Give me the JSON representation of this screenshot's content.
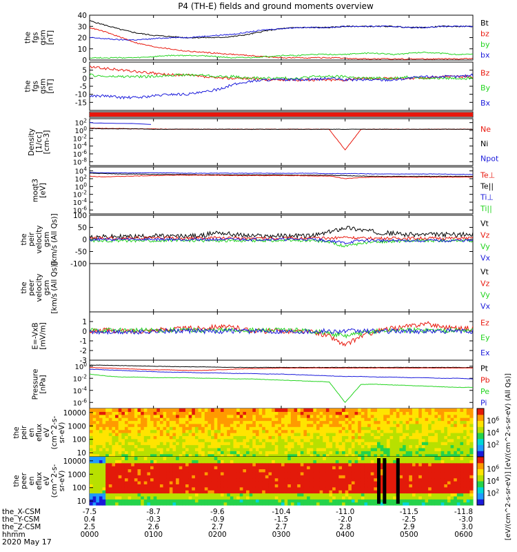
{
  "title": "P4 (TH-E) fields and ground moments overview",
  "date_label": "2020 May 17",
  "colors": {
    "black": "#000000",
    "red": "#e8170c",
    "green": "#23d41f",
    "blue": "#1a1adb"
  },
  "chart_data": [
    {
      "id": "p1",
      "type": "line",
      "ylabel": [
        "the",
        "fgs",
        "gsm",
        "[nT]"
      ],
      "ylim": [
        0,
        40
      ],
      "ticks": [
        0,
        10,
        20,
        30,
        40
      ],
      "scale": "linear",
      "legend": [
        {
          "name": "Bt",
          "color": "black"
        },
        {
          "name": "bz",
          "color": "red"
        },
        {
          "name": "by",
          "color": "green"
        },
        {
          "name": "bx",
          "color": "blue"
        }
      ],
      "series": [
        {
          "name": "Bt",
          "color": "black",
          "values": [
            35,
            31,
            27,
            24,
            22,
            21,
            20,
            20,
            20,
            21,
            23,
            26,
            28,
            29,
            29,
            29,
            30,
            30,
            30,
            30,
            29,
            29,
            30,
            30,
            30
          ]
        },
        {
          "name": "bz",
          "color": "red",
          "values": [
            29,
            25,
            20,
            15,
            12,
            10,
            8,
            7,
            6,
            5,
            4,
            3,
            2,
            2,
            2,
            2,
            1.5,
            1,
            1,
            1,
            1,
            1,
            1,
            1,
            1.5
          ]
        },
        {
          "name": "by",
          "color": "green",
          "values": [
            2,
            2,
            2,
            2,
            3,
            4,
            4,
            4,
            3,
            2,
            2,
            3,
            4,
            4,
            5,
            5,
            5,
            6,
            6,
            5,
            6,
            7,
            6,
            5,
            5
          ]
        },
        {
          "name": "bx",
          "color": "blue",
          "values": [
            20,
            19,
            18,
            18,
            19,
            20,
            20,
            21,
            22,
            23,
            25,
            27,
            28,
            29,
            29,
            29,
            30,
            30,
            30,
            30,
            29,
            29,
            30,
            30,
            30
          ]
        }
      ]
    },
    {
      "id": "p2",
      "type": "line",
      "ylabel": [
        "the",
        "fgs",
        "gsm",
        "[nT]"
      ],
      "ylim": [
        -20,
        10
      ],
      "ticks": [
        -15,
        -10,
        -5,
        0,
        5
      ],
      "scale": "linear",
      "legend": [
        {
          "name": "Bz",
          "color": "red"
        },
        {
          "name": "By",
          "color": "green"
        },
        {
          "name": "Bx",
          "color": "blue"
        }
      ],
      "series": [
        {
          "name": "Bz",
          "color": "red",
          "values": [
            7,
            6,
            5,
            4,
            3,
            2,
            2,
            1,
            0,
            0,
            0,
            -1,
            -1,
            -1,
            -1,
            -1,
            -1,
            0,
            0,
            0,
            0,
            0,
            1,
            1,
            1
          ]
        },
        {
          "name": "By",
          "color": "green",
          "values": [
            2,
            1,
            1,
            1,
            1,
            2,
            2,
            2,
            1,
            1,
            0,
            0,
            0,
            0,
            1,
            1,
            1,
            0,
            0,
            0,
            1,
            0,
            0,
            0,
            0
          ]
        },
        {
          "name": "Bx",
          "color": "blue",
          "values": [
            -11,
            -11,
            -12,
            -12,
            -11,
            -10,
            -10,
            -9,
            -7,
            -4,
            -2,
            -1,
            -1,
            -1,
            -1,
            0,
            -1,
            -1,
            -1,
            -1,
            0,
            1,
            1,
            1,
            2
          ]
        }
      ]
    },
    {
      "id": "p3",
      "type": "bar"
    },
    {
      "id": "p4",
      "type": "line",
      "ylabel": [
        "Density",
        "[1/cc]",
        "[cm-3]"
      ],
      "ylim": [
        -9,
        3
      ],
      "ticks": [
        -8,
        -6,
        -4,
        -2,
        0,
        2
      ],
      "scale": "log",
      "legend": [
        {
          "name": "Ne",
          "color": "red"
        },
        {
          "name": "Ni",
          "color": "black"
        },
        {
          "name": "Npot",
          "color": "blue"
        }
      ],
      "series": [
        {
          "name": "Ne",
          "color": "red",
          "values": [
            0.6,
            0.5,
            0.5,
            0.4,
            0.4,
            0.3,
            0.3,
            0.3,
            0.3,
            0.3,
            0.3,
            0.3,
            0.3,
            0.3,
            0.3,
            0.3,
            -5,
            0.3,
            0.3,
            0.3,
            0.3,
            0.3,
            0.3,
            0.3,
            0.3
          ]
        },
        {
          "name": "Ni",
          "color": "black",
          "values": [
            0.5,
            0.4,
            0.4,
            0.4,
            0.3,
            0.3,
            0.3,
            0.3,
            0.3,
            0.3,
            0.3,
            0.3,
            0.3,
            0.3,
            0.3,
            0.3,
            0.3,
            0.3,
            0.3,
            0.3,
            0.3,
            0.3,
            0.3,
            0.3,
            0.3
          ]
        },
        {
          "name": "Npot",
          "color": "blue",
          "values": [
            2,
            1.8,
            1.8,
            1.5
          ]
        }
      ]
    },
    {
      "id": "p5",
      "type": "line",
      "ylabel": [
        "moqt3",
        "[eV]"
      ],
      "ylim": [
        -7,
        5
      ],
      "ticks": [
        -6,
        -4,
        -2,
        0,
        2,
        4
      ],
      "scale": "log",
      "legend": [
        {
          "name": "Te⊥",
          "color": "red"
        },
        {
          "name": "Te||",
          "color": "black"
        },
        {
          "name": "Ti⊥",
          "color": "blue"
        },
        {
          "name": "Ti||",
          "color": "green"
        }
      ],
      "series": [
        {
          "name": "Ti⊥",
          "color": "blue",
          "values": [
            3.6,
            3.5,
            3.5,
            3.5,
            3.5,
            3.5,
            3.4,
            3.4,
            3.4,
            3.4,
            3.4,
            3.4,
            3.4,
            3.4,
            3.4,
            3.3,
            3.3,
            3.3,
            3.2,
            3.2,
            3.2,
            3.2,
            3.2,
            3.1,
            3.1
          ]
        },
        {
          "name": "Te||",
          "color": "black",
          "values": [
            3.4,
            3.3,
            3.2,
            3.2,
            3.1,
            3.1,
            3.1,
            3.0,
            3.0,
            3.0,
            3.0,
            3.0,
            3.0,
            2.9,
            2.9,
            2.9,
            2.8,
            2.7,
            2.6,
            2.6,
            2.6,
            2.6,
            2.6,
            2.6,
            2.6
          ]
        },
        {
          "name": "Te⊥",
          "color": "red",
          "values": [
            2.6,
            2.5,
            2.6,
            2.7,
            2.8,
            2.9,
            2.9,
            2.9,
            2.9,
            2.8,
            2.8,
            2.8,
            2.8,
            2.8,
            2.7,
            2.7,
            2.0,
            2.3,
            2.4,
            2.4,
            2.4,
            2.4,
            2.4,
            2.4,
            2.4
          ]
        }
      ]
    },
    {
      "id": "p6",
      "type": "line",
      "ylabel": [
        "the",
        "peir",
        "velocity",
        "gsm",
        "[km/s (All Qs)]"
      ],
      "ylim": [
        -100,
        100
      ],
      "ticks": [
        -100,
        -50,
        0,
        50,
        100
      ],
      "scale": "linear",
      "legend": [
        {
          "name": "Vt",
          "color": "black"
        },
        {
          "name": "Vz",
          "color": "red"
        },
        {
          "name": "Vy",
          "color": "green"
        },
        {
          "name": "Vx",
          "color": "blue"
        }
      ],
      "series": [
        {
          "name": "Vt",
          "color": "black",
          "values": [
            10,
            10,
            12,
            12,
            15,
            12,
            14,
            15,
            30,
            20,
            15,
            14,
            15,
            15,
            15,
            30,
            50,
            40,
            30,
            25,
            20,
            20,
            20,
            20,
            20
          ]
        },
        {
          "name": "Vz",
          "color": "red",
          "values": [
            5,
            5,
            5,
            6,
            6,
            5,
            5,
            5,
            6,
            5,
            5,
            5,
            5,
            5,
            5,
            5,
            10,
            5,
            5,
            5,
            5,
            5,
            5,
            5,
            5
          ]
        },
        {
          "name": "Vy",
          "color": "green",
          "values": [
            -5,
            -5,
            -5,
            -5,
            -5,
            -5,
            -5,
            -5,
            -5,
            -5,
            -5,
            -5,
            -5,
            -5,
            -5,
            -10,
            -30,
            -15,
            -10,
            -8,
            -5,
            -5,
            -5,
            -5,
            -5
          ]
        },
        {
          "name": "Vx",
          "color": "blue",
          "values": [
            0,
            0,
            0,
            0,
            0,
            0,
            0,
            0,
            0,
            0,
            0,
            0,
            0,
            0,
            0,
            -5,
            -15,
            -5,
            -5,
            -5,
            -5,
            -5,
            -5,
            -5,
            -5
          ]
        }
      ]
    },
    {
      "id": "p7",
      "type": "line",
      "ylabel": [
        "the",
        "peer",
        "velocity",
        "gsm",
        "[km/s (All Qs)]"
      ],
      "legend": [
        {
          "name": "Vt",
          "color": "black"
        },
        {
          "name": "Vz",
          "color": "red"
        },
        {
          "name": "Vy",
          "color": "green"
        },
        {
          "name": "Vx",
          "color": "blue"
        }
      ],
      "series": []
    },
    {
      "id": "p8",
      "type": "line",
      "ylabel": [
        "E=-VxB",
        "[mV/m]"
      ],
      "ylim": [
        -3,
        2
      ],
      "ticks": [
        -3,
        -2,
        -1,
        0,
        1
      ],
      "scale": "linear",
      "legend": [
        {
          "name": "Ez",
          "color": "red"
        },
        {
          "name": "Ey",
          "color": "green"
        },
        {
          "name": "Ex",
          "color": "blue"
        }
      ],
      "series": [
        {
          "name": "Ez",
          "color": "red",
          "values": [
            0,
            0.1,
            0,
            0,
            0.1,
            0.2,
            0.3,
            0.3,
            0.5,
            0.4,
            0.1,
            0,
            0,
            0,
            -0.1,
            -0.5,
            -1.5,
            -0.5,
            0,
            0.3,
            0.5,
            0.8,
            0.5,
            0.3,
            0.3
          ]
        },
        {
          "name": "Ey",
          "color": "green",
          "values": [
            0.1,
            0.1,
            0.1,
            0.1,
            0.1,
            0.1,
            0.1,
            0.1,
            0.1,
            0.1,
            0.1,
            0.1,
            0.1,
            0.1,
            0,
            -0.2,
            -0.5,
            -0.2,
            0,
            0.1,
            0.1,
            0.1,
            0.1,
            0.1,
            0.1
          ]
        },
        {
          "name": "Ex",
          "color": "blue",
          "values": [
            -0.1,
            -0.1,
            -0.1,
            -0.1,
            0,
            0,
            0,
            0,
            0,
            0,
            0,
            0,
            0,
            0,
            0,
            0,
            0,
            0,
            0,
            0,
            0,
            0,
            0,
            0,
            0
          ]
        }
      ]
    },
    {
      "id": "p9",
      "type": "line",
      "ylabel": [
        "Pressure",
        "[nPa]"
      ],
      "ylim": [
        -7,
        1
      ],
      "ticks": [
        -6,
        -4,
        -2,
        0
      ],
      "scale": "log",
      "legend": [
        {
          "name": "Pt",
          "color": "black"
        },
        {
          "name": "Pb",
          "color": "red"
        },
        {
          "name": "Pe",
          "color": "green"
        },
        {
          "name": "Pi",
          "color": "blue"
        }
      ],
      "series": [
        {
          "name": "Pt",
          "color": "black",
          "values": [
            0.2,
            0.15,
            0.1,
            0.05,
            0,
            -0.05,
            -0.1,
            -0.1,
            -0.15,
            -0.2,
            -0.2,
            -0.2,
            -0.2,
            -0.2,
            -0.2,
            -0.2,
            -0.2,
            -0.2,
            -0.2,
            -0.2,
            -0.2,
            -0.2,
            -0.2,
            -0.2,
            -0.2
          ]
        },
        {
          "name": "Pb",
          "color": "red",
          "values": [
            -0.2,
            -0.3,
            -0.4,
            -0.5,
            -0.6,
            -0.6,
            -0.7,
            -0.7,
            -0.6,
            -0.5,
            -0.4,
            -0.4,
            -0.3,
            -0.3,
            -0.3,
            -0.3,
            -0.3,
            -0.3,
            -0.3,
            -0.3,
            -0.3,
            -0.3,
            -0.3,
            -0.3,
            -0.3
          ]
        },
        {
          "name": "Pi",
          "color": "blue",
          "values": [
            -0.5,
            -0.6,
            -0.7,
            -0.8,
            -0.9,
            -1.0,
            -1.0,
            -1.1,
            -1.1,
            -1.2,
            -1.2,
            -1.3,
            -1.3,
            -1.4,
            -1.5,
            -1.6,
            -1.7,
            -1.7,
            -1.8,
            -1.8,
            -1.9,
            -1.9,
            -2.0,
            -2.0,
            -2.1
          ]
        },
        {
          "name": "Pe",
          "color": "green",
          "values": [
            -1.3,
            -1.6,
            -1.8,
            -1.8,
            -1.9,
            -1.9,
            -1.9,
            -2.0,
            -2.0,
            -2.1,
            -2.1,
            -2.2,
            -2.3,
            -2.4,
            -2.5,
            -2.6,
            -6,
            -3.0,
            -3.0,
            -3.1,
            -3.2,
            -3.3,
            -3.4,
            -3.5,
            -3.5
          ]
        }
      ]
    },
    {
      "id": "p10",
      "type": "heatmap",
      "ylabel": [
        "the",
        "peir",
        "en",
        "eflux",
        "eV",
        "(cm^2-s-",
        "sr-eV)"
      ],
      "yticks": [
        "10",
        "100",
        "1000",
        "10000"
      ],
      "cbar_ticks": [
        "10^2",
        "10^4",
        "10^6"
      ]
    },
    {
      "id": "p11",
      "type": "heatmap",
      "ylabel": [
        "the",
        "peer",
        "en",
        "eflux",
        "eV",
        "(cm^2-s-",
        "sr-eV)"
      ],
      "yticks": [
        "10",
        "100",
        "1000",
        "10000"
      ],
      "cbar_ticks": [
        "10^2",
        "10^4",
        "10^6"
      ]
    }
  ],
  "colorbar_label": "[eV/(cm^2-s-sr-eV)] [eV/(cm^2-s-sr-eV) (All Qs)]",
  "xaxis": {
    "row_labels": [
      "the_X-CSM",
      "the_Y-CSM",
      "the_Z-CSM",
      "hhmm"
    ],
    "columns": [
      {
        "x": "-7.5",
        "y": "0.4",
        "z": "2.5",
        "hhmm": "0000"
      },
      {
        "x": "-8.7",
        "y": "-0.3",
        "z": "2.6",
        "hhmm": "0100"
      },
      {
        "x": "-9.6",
        "y": "-0.9",
        "z": "2.7",
        "hhmm": "0200"
      },
      {
        "x": "-10.4",
        "y": "-1.5",
        "z": "2.7",
        "hhmm": "0300"
      },
      {
        "x": "-11.0",
        "y": "-2.0",
        "z": "2.8",
        "hhmm": "0400"
      },
      {
        "x": "-11.5",
        "y": "-2.5",
        "z": "2.9",
        "hhmm": "0500"
      },
      {
        "x": "-11.8",
        "y": "-3.0",
        "z": "3.0",
        "hhmm": "0600"
      }
    ]
  }
}
